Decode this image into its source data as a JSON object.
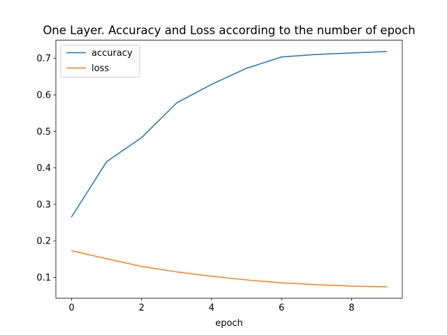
{
  "chart_data": {
    "type": "line",
    "title": "One Layer. Accuracy and Loss according to the number of epoch",
    "xlabel": "epoch",
    "ylabel": "",
    "x": [
      0,
      1,
      2,
      3,
      4,
      5,
      6,
      7,
      8,
      9
    ],
    "xlim": [
      -0.45,
      9.45
    ],
    "ylim": [
      0.043,
      0.75
    ],
    "x_ticks": [
      0,
      2,
      4,
      6,
      8
    ],
    "y_ticks": [
      0.1,
      0.2,
      0.3,
      0.4,
      0.5,
      0.6,
      0.7
    ],
    "x_tick_labels": [
      "0",
      "2",
      "4",
      "6",
      "8"
    ],
    "y_tick_labels": [
      "0.1",
      "0.2",
      "0.3",
      "0.4",
      "0.5",
      "0.6",
      "0.7"
    ],
    "grid": false,
    "legend": "upper-left",
    "series": [
      {
        "name": "accuracy",
        "color": "#1f77b4",
        "values": [
          0.266,
          0.417,
          0.483,
          0.578,
          0.629,
          0.673,
          0.704,
          0.711,
          0.715,
          0.719
        ]
      },
      {
        "name": "loss",
        "color": "#ff7f0e",
        "values": [
          0.173,
          0.151,
          0.13,
          0.115,
          0.103,
          0.093,
          0.085,
          0.08,
          0.076,
          0.074
        ]
      }
    ]
  }
}
